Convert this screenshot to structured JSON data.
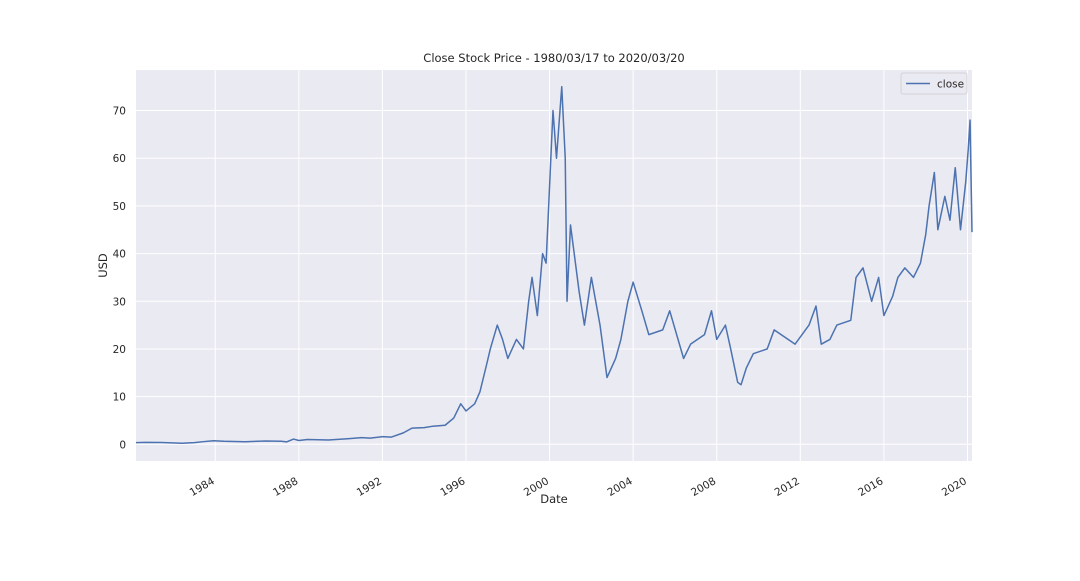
{
  "chart_data": {
    "type": "line",
    "title": "Close Stock Price - 1980/03/17 to 2020/03/20",
    "xlabel": "Date",
    "ylabel": "USD",
    "x_range": [
      "1980-03-17",
      "2020-03-20"
    ],
    "ylim": [
      -3.5,
      78.5
    ],
    "x_ticks": [
      "1984",
      "1988",
      "1992",
      "1996",
      "2000",
      "2004",
      "2008",
      "2012",
      "2016",
      "2020"
    ],
    "y_ticks": [
      0,
      10,
      20,
      30,
      40,
      50,
      60,
      70
    ],
    "grid": true,
    "legend": {
      "position": "top-right",
      "entries": [
        "close"
      ]
    },
    "series": [
      {
        "name": "close",
        "color": "#4c72b0",
        "points": [
          [
            "1980-03-17",
            0.35
          ],
          [
            "1980-09-01",
            0.4
          ],
          [
            "1981-06-01",
            0.38
          ],
          [
            "1982-06-01",
            0.22
          ],
          [
            "1983-01-01",
            0.35
          ],
          [
            "1983-06-01",
            0.55
          ],
          [
            "1983-12-01",
            0.75
          ],
          [
            "1984-06-01",
            0.65
          ],
          [
            "1985-06-01",
            0.55
          ],
          [
            "1986-06-01",
            0.7
          ],
          [
            "1987-03-01",
            0.65
          ],
          [
            "1987-06-01",
            0.5
          ],
          [
            "1987-10-01",
            1.1
          ],
          [
            "1988-01-01",
            0.8
          ],
          [
            "1988-06-01",
            1.0
          ],
          [
            "1989-06-01",
            0.9
          ],
          [
            "1990-06-01",
            1.2
          ],
          [
            "1991-01-01",
            1.4
          ],
          [
            "1991-06-01",
            1.3
          ],
          [
            "1992-01-01",
            1.6
          ],
          [
            "1992-06-01",
            1.5
          ],
          [
            "1993-01-01",
            2.4
          ],
          [
            "1993-06-01",
            3.4
          ],
          [
            "1994-01-01",
            3.5
          ],
          [
            "1994-06-01",
            3.8
          ],
          [
            "1995-01-01",
            4.0
          ],
          [
            "1995-06-01",
            5.5
          ],
          [
            "1995-10-01",
            8.5
          ],
          [
            "1996-01-01",
            7.0
          ],
          [
            "1996-06-01",
            8.5
          ],
          [
            "1996-09-01",
            11.0
          ],
          [
            "1997-01-01",
            17.0
          ],
          [
            "1997-03-01",
            20.0
          ],
          [
            "1997-07-01",
            25.0
          ],
          [
            "1997-10-01",
            22.0
          ],
          [
            "1998-01-01",
            18.0
          ],
          [
            "1998-06-01",
            22.0
          ],
          [
            "1998-10-01",
            20.0
          ],
          [
            "1999-01-01",
            30.0
          ],
          [
            "1999-03-01",
            35.0
          ],
          [
            "1999-06-01",
            27.0
          ],
          [
            "1999-09-01",
            40.0
          ],
          [
            "1999-11-01",
            38.0
          ],
          [
            "2000-03-01",
            70.0
          ],
          [
            "2000-05-01",
            60.0
          ],
          [
            "2000-08-01",
            75.0
          ],
          [
            "2000-10-01",
            60.0
          ],
          [
            "2000-11-01",
            30.0
          ],
          [
            "2001-01-01",
            46.0
          ],
          [
            "2001-06-01",
            32.0
          ],
          [
            "2001-09-01",
            25.0
          ],
          [
            "2002-01-01",
            35.0
          ],
          [
            "2002-06-01",
            25.0
          ],
          [
            "2002-10-01",
            14.0
          ],
          [
            "2003-03-01",
            18.0
          ],
          [
            "2003-06-01",
            22.0
          ],
          [
            "2003-10-01",
            30.0
          ],
          [
            "2004-01-01",
            34.0
          ],
          [
            "2004-06-01",
            28.0
          ],
          [
            "2004-10-01",
            23.0
          ],
          [
            "2005-06-01",
            24.0
          ],
          [
            "2005-10-01",
            28.0
          ],
          [
            "2006-06-01",
            18.0
          ],
          [
            "2006-10-01",
            21.0
          ],
          [
            "2007-06-01",
            23.0
          ],
          [
            "2007-10-01",
            28.0
          ],
          [
            "2008-01-01",
            22.0
          ],
          [
            "2008-06-01",
            25.0
          ],
          [
            "2008-09-01",
            20.0
          ],
          [
            "2009-01-01",
            13.0
          ],
          [
            "2009-03-01",
            12.5
          ],
          [
            "2009-06-01",
            16.0
          ],
          [
            "2009-10-01",
            19.0
          ],
          [
            "2010-06-01",
            20.0
          ],
          [
            "2010-10-01",
            24.0
          ],
          [
            "2011-06-01",
            22.0
          ],
          [
            "2011-10-01",
            21.0
          ],
          [
            "2012-06-01",
            25.0
          ],
          [
            "2012-10-01",
            29.0
          ],
          [
            "2013-01-01",
            21.0
          ],
          [
            "2013-06-01",
            22.0
          ],
          [
            "2013-10-01",
            25.0
          ],
          [
            "2014-06-01",
            26.0
          ],
          [
            "2014-09-01",
            35.0
          ],
          [
            "2015-01-01",
            37.0
          ],
          [
            "2015-06-01",
            30.0
          ],
          [
            "2015-10-01",
            35.0
          ],
          [
            "2016-01-01",
            27.0
          ],
          [
            "2016-06-01",
            31.0
          ],
          [
            "2016-09-01",
            35.0
          ],
          [
            "2017-01-01",
            37.0
          ],
          [
            "2017-06-01",
            35.0
          ],
          [
            "2017-10-01",
            38.0
          ],
          [
            "2018-01-01",
            44.0
          ],
          [
            "2018-03-01",
            50.0
          ],
          [
            "2018-06-01",
            57.0
          ],
          [
            "2018-08-01",
            45.0
          ],
          [
            "2018-12-01",
            52.0
          ],
          [
            "2019-03-01",
            47.0
          ],
          [
            "2019-06-01",
            58.0
          ],
          [
            "2019-09-01",
            45.0
          ],
          [
            "2019-12-01",
            55.0
          ],
          [
            "2020-01-15",
            62.0
          ],
          [
            "2020-02-15",
            68.0
          ],
          [
            "2020-03-20",
            44.5
          ]
        ]
      }
    ]
  }
}
